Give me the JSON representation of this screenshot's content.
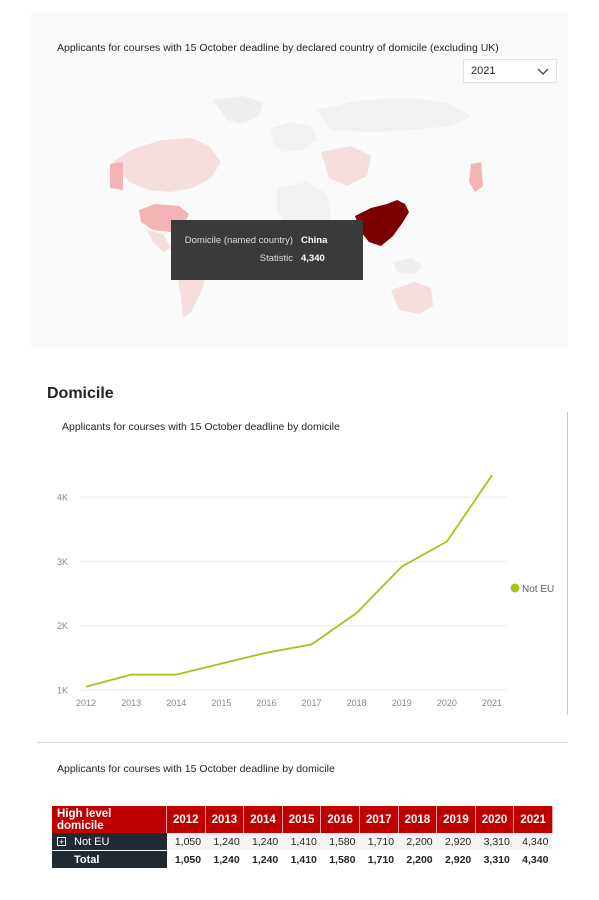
{
  "map_card": {
    "title": "Applicants for courses with 15 October deadline by declared country of domicile (excluding UK)",
    "year_select": {
      "selected": "2021"
    },
    "tooltip": {
      "rows": [
        {
          "key": "Domicile (named country)",
          "value": "China"
        },
        {
          "key": "Statistic",
          "value": "4,340"
        }
      ]
    },
    "colors": {
      "highlight": "#7b0000",
      "mid": "#f2b4b4",
      "light": "#f4dede",
      "base": "#eeeeee"
    }
  },
  "section": {
    "title": "Domicile"
  },
  "line_card": {
    "title": "Applicants for courses with 15 October deadline  by domicile",
    "legend_label": "Not EU"
  },
  "table_card": {
    "title": "Applicants for courses with 15 October deadline  by domicile",
    "header_first": "High level domicile",
    "years": [
      "2012",
      "2013",
      "2014",
      "2015",
      "2016",
      "2017",
      "2018",
      "2019",
      "2020",
      "2021"
    ],
    "rows": [
      {
        "label": "Not EU",
        "expand": "+",
        "values": [
          "1,050",
          "1,240",
          "1,240",
          "1,410",
          "1,580",
          "1,710",
          "2,200",
          "2,920",
          "3,310",
          "4,340"
        ]
      },
      {
        "label": "Total",
        "values": [
          "1,050",
          "1,240",
          "1,240",
          "1,410",
          "1,580",
          "1,710",
          "2,200",
          "2,920",
          "3,310",
          "4,340"
        ]
      }
    ],
    "colors": {
      "header_bg": "#c00000",
      "label_bg": "#1f2a33"
    }
  },
  "chart_data": {
    "type": "line",
    "x": [
      2012,
      2013,
      2014,
      2015,
      2016,
      2017,
      2018,
      2019,
      2020,
      2021
    ],
    "series": [
      {
        "name": "Not EU",
        "color": "#a5c219",
        "values": [
          1050,
          1240,
          1240,
          1410,
          1580,
          1710,
          2200,
          2920,
          3310,
          4340
        ]
      }
    ],
    "y_ticks": [
      "1K",
      "2K",
      "3K",
      "4K"
    ],
    "ylim": [
      1000,
      4500
    ],
    "grid": true,
    "legend_position": "right"
  }
}
